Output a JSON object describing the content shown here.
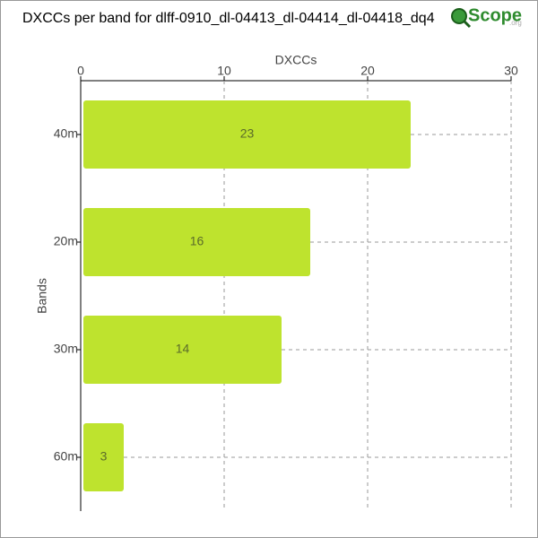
{
  "chart_data": {
    "type": "bar",
    "orientation": "horizontal",
    "title": "DXCCs per band for dlff-0910_dl-04413_dl-04414_dl-04418_dq4",
    "x_label": "DXCCs",
    "y_label": "Bands",
    "categories": [
      "40m",
      "20m",
      "30m",
      "60m"
    ],
    "values": [
      23,
      16,
      14,
      3
    ],
    "color": "#bee32e",
    "xlim": [
      0,
      30
    ],
    "xticks": [
      0,
      10,
      20,
      30
    ],
    "grid": true
  },
  "logo": {
    "text": "Scope",
    "suffix": ".org"
  }
}
